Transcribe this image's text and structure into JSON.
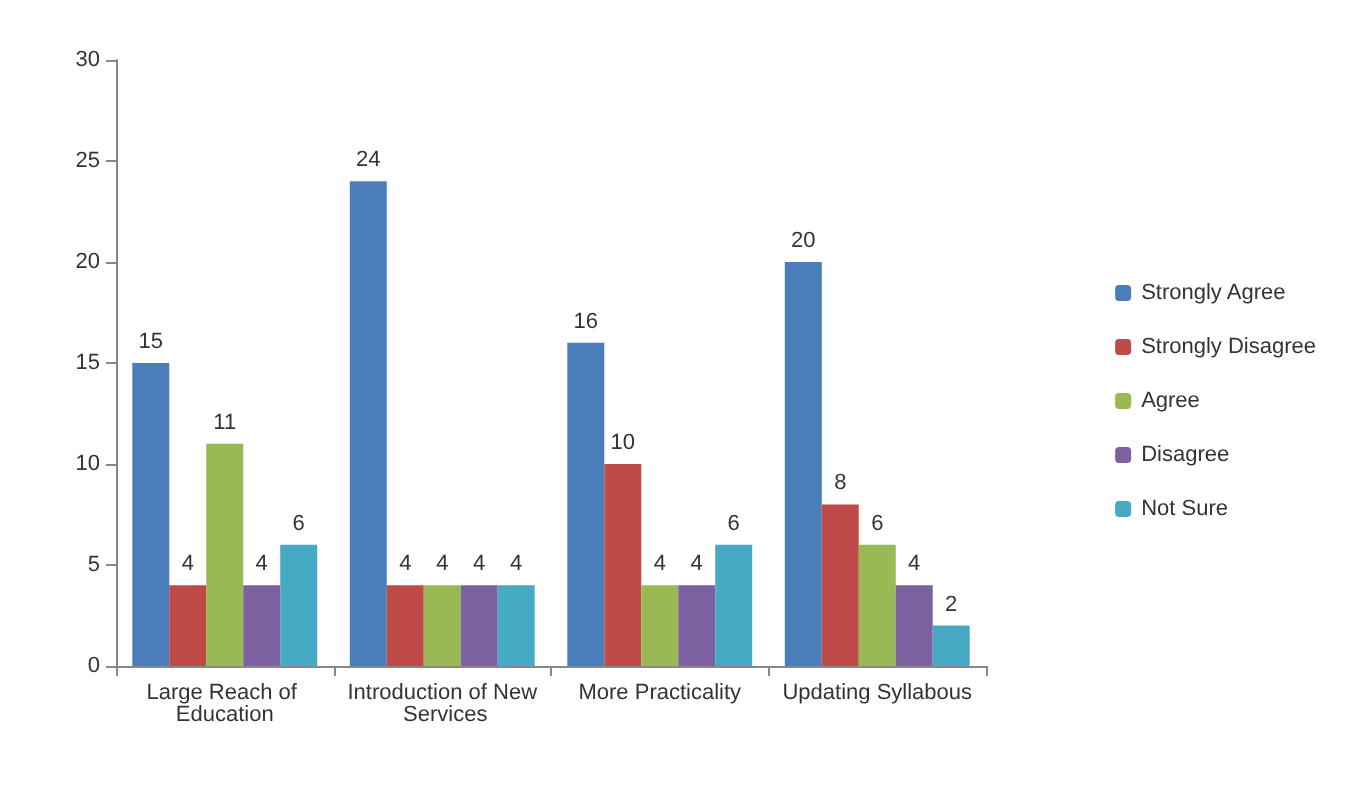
{
  "chart_data": {
    "type": "bar",
    "categories": [
      "Large Reach of Education",
      "Introduction of New Services",
      "More Practicality",
      "Updating Syllabous"
    ],
    "series": [
      {
        "name": "Strongly Agree",
        "color": "#4a7ebb",
        "values": [
          15,
          24,
          16,
          20
        ]
      },
      {
        "name": "Strongly Disagree",
        "color": "#be4b48",
        "values": [
          4,
          4,
          10,
          8
        ]
      },
      {
        "name": "Agree",
        "color": "#98b954",
        "values": [
          11,
          4,
          4,
          6
        ]
      },
      {
        "name": "Disagree",
        "color": "#7d60a0",
        "values": [
          4,
          4,
          4,
          4
        ]
      },
      {
        "name": "Not Sure",
        "color": "#46aac5",
        "values": [
          6,
          4,
          6,
          2
        ]
      }
    ],
    "ylim": [
      0,
      30
    ],
    "yticks": [
      0,
      5,
      10,
      15,
      20,
      25,
      30
    ],
    "grid": false,
    "legend": "right",
    "data_labels": true
  }
}
